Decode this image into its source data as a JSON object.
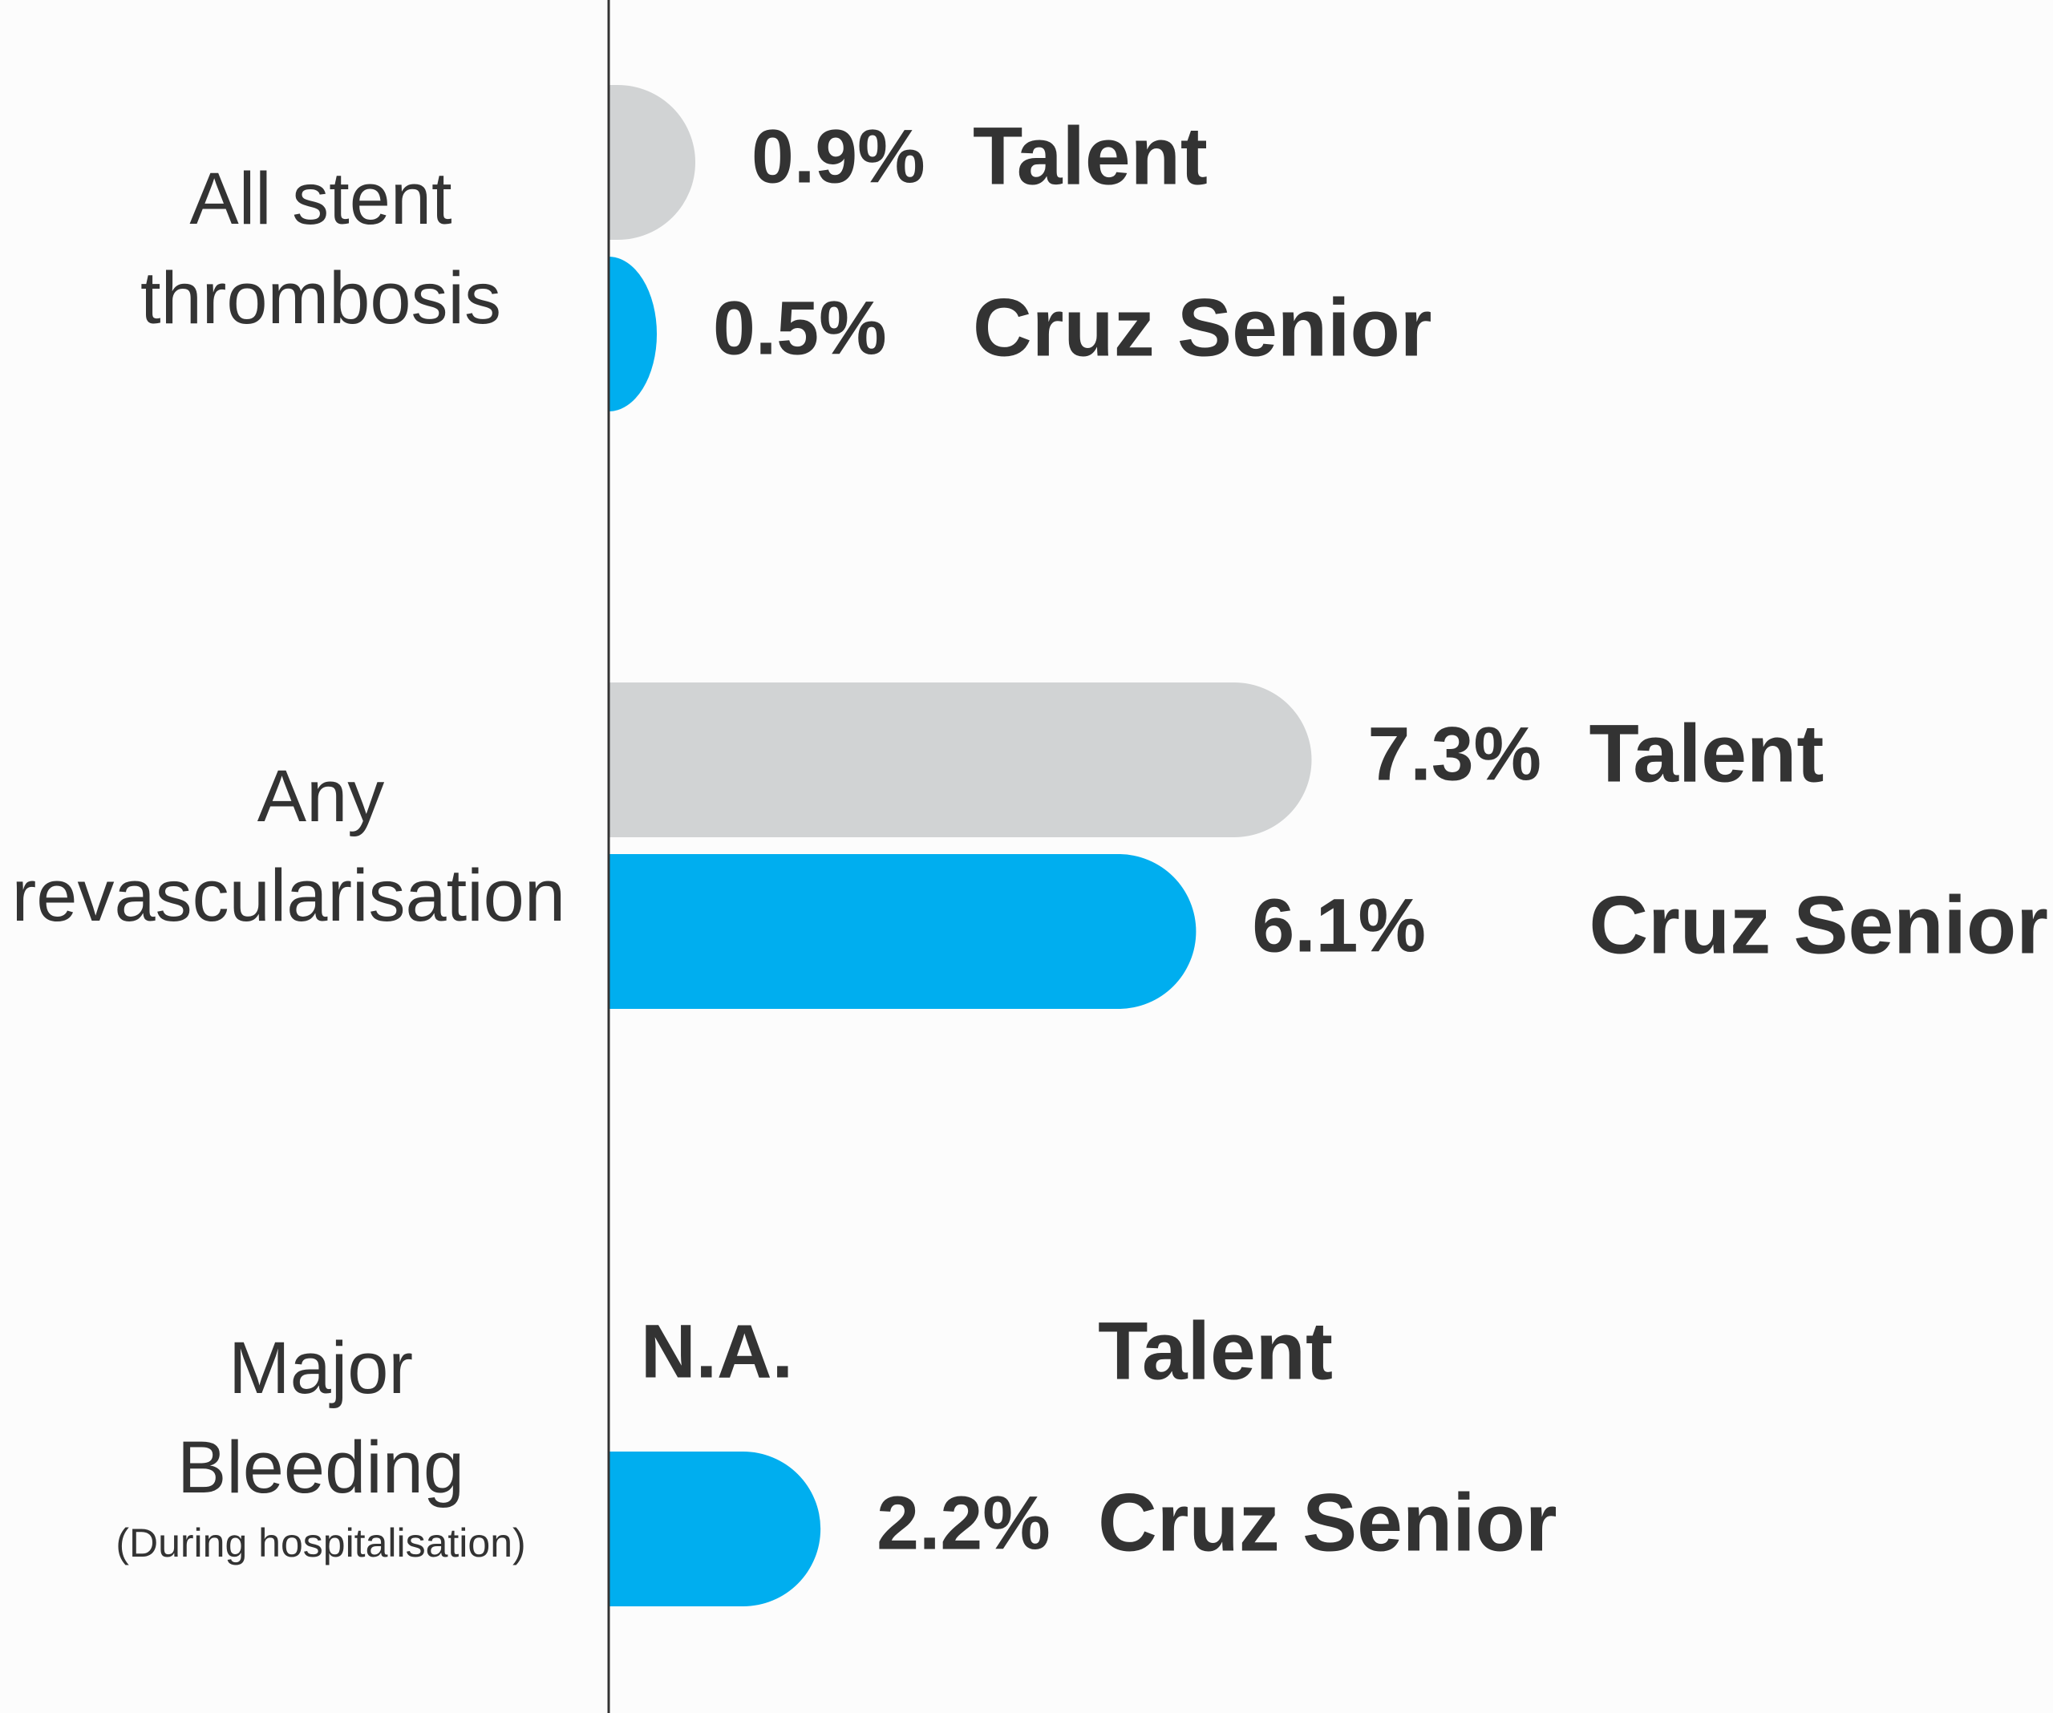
{
  "chart_data": {
    "type": "bar",
    "orientation": "horizontal",
    "categories": [
      "All stent thrombosis",
      "Any revascularisation",
      "Major Bleeding"
    ],
    "category_notes": [
      null,
      null,
      "(During hospitalisation)"
    ],
    "series": [
      {
        "name": "Talent",
        "color": "#d1d3d4",
        "values": [
          0.9,
          7.3,
          null
        ],
        "value_labels": [
          "0.9%",
          "7.3%",
          "N.A."
        ]
      },
      {
        "name": "Cruz Senior",
        "color": "#00aeef",
        "values": [
          0.5,
          6.1,
          2.2
        ],
        "value_labels": [
          "0.5%",
          "6.1%",
          "2.2%"
        ]
      }
    ],
    "xlim": [
      0,
      15
    ]
  }
}
